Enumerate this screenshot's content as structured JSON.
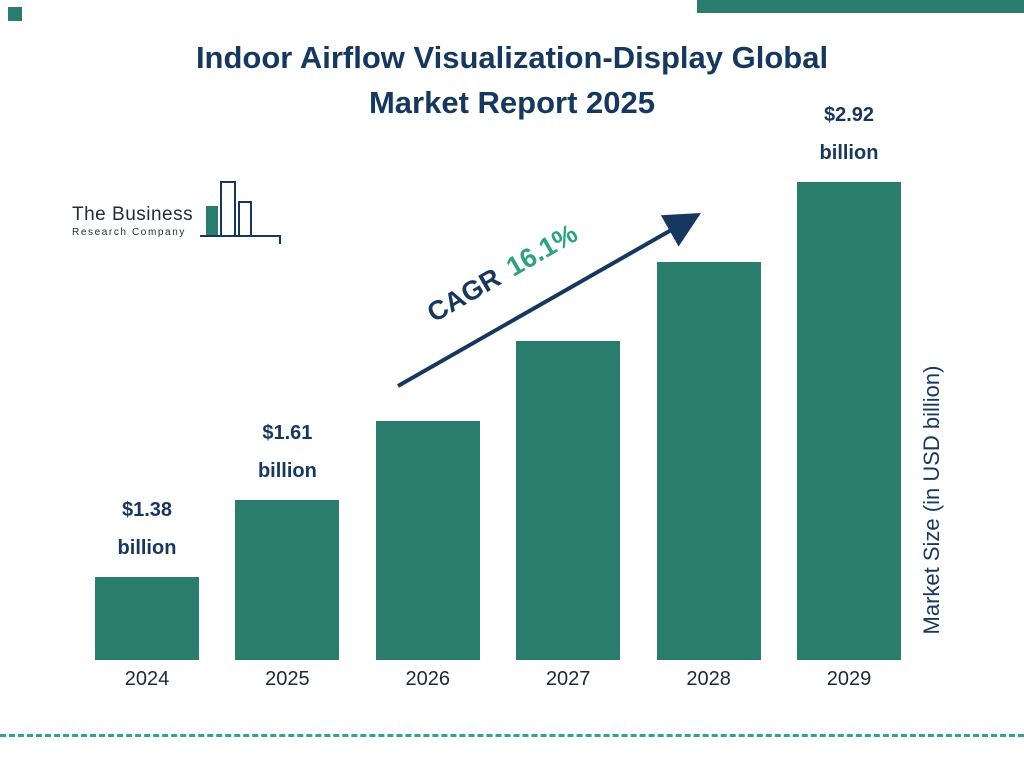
{
  "page": {
    "title_lines": [
      "Indoor Airflow Visualization-Display Global",
      "Market Report 2025"
    ]
  },
  "logo": {
    "line1": "The Business",
    "line2": "Research Company"
  },
  "chart_data": {
    "type": "bar",
    "title": "Indoor Airflow Visualization-Display Global Market Report 2025",
    "categories": [
      "2024",
      "2025",
      "2026",
      "2027",
      "2028",
      "2029"
    ],
    "values": [
      1.38,
      1.61,
      1.87,
      2.17,
      2.52,
      2.92
    ],
    "bar_labels": [
      {
        "amount": "$1.38",
        "unit": "billion"
      },
      {
        "amount": "$1.61",
        "unit": "billion"
      },
      null,
      null,
      null,
      {
        "amount": "$2.92",
        "unit": "billion"
      }
    ],
    "xlabel": "",
    "ylabel": "Market Size (in USD billion)",
    "cagr_label": "CAGR",
    "cagr_value": "16.1%",
    "legend": "none",
    "grid": false,
    "bar_color": "#2a7c6c",
    "accent_navy": "#16375e",
    "accent_green": "#2ea183"
  }
}
